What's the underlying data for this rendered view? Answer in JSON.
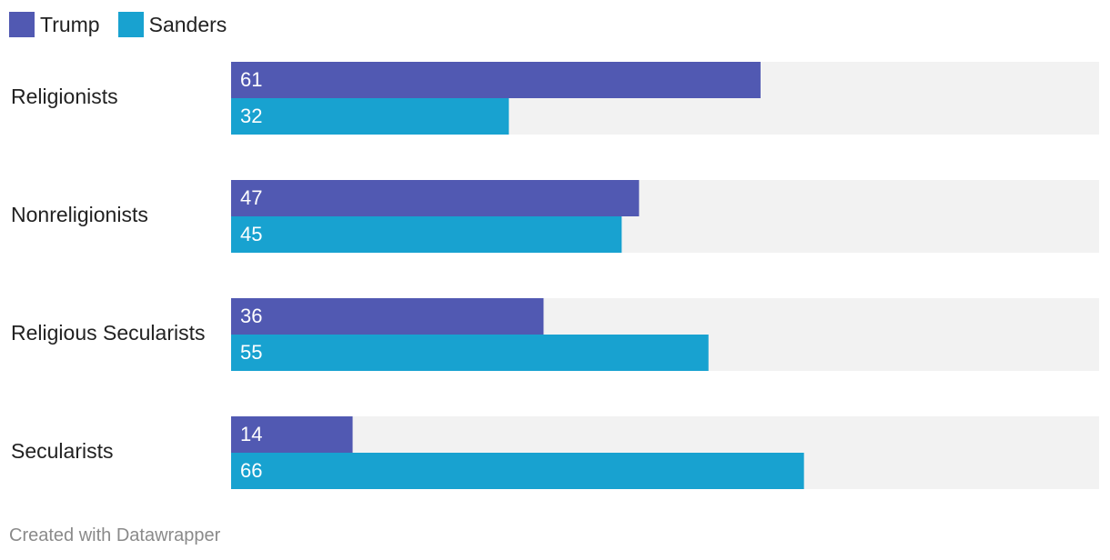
{
  "chart_data": {
    "type": "bar",
    "orientation": "horizontal",
    "categories": [
      "Religionists",
      "Nonreligionists",
      "Religious Secularists",
      "Secularists"
    ],
    "series": [
      {
        "name": "Trump",
        "color": "#5159b2",
        "values": [
          61,
          47,
          36,
          14
        ]
      },
      {
        "name": "Sanders",
        "color": "#18a2d0",
        "values": [
          32,
          45,
          55,
          66
        ]
      }
    ],
    "xlim": [
      0,
      100
    ],
    "grid": false,
    "legend": "top-left",
    "background_bar_color": "#f2f2f2"
  },
  "footer": {
    "credit": "Created with Datawrapper"
  }
}
